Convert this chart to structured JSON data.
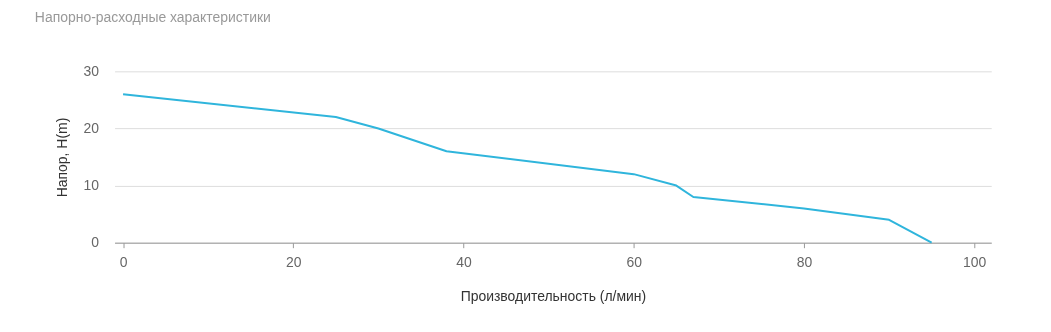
{
  "chart_data": {
    "type": "line",
    "title": "Напорно-расходные характеристики",
    "xlabel": "Производительность (л/мин)",
    "ylabel": "Напор, H(m)",
    "x": [
      0,
      25,
      30,
      38,
      60,
      65,
      67,
      80,
      90,
      95
    ],
    "series": [
      {
        "color": "#2fb5dc",
        "values": [
          26,
          22,
          20,
          16,
          12,
          10,
          8,
          6,
          4,
          0
        ]
      }
    ],
    "xlim": [
      -1,
      102
    ],
    "xticks": [
      0,
      20,
      40,
      60,
      80,
      100
    ],
    "ylim": [
      0,
      30
    ],
    "yticks": [
      0,
      10,
      20,
      30
    ],
    "grid": "y",
    "marker": "none",
    "line_style": "solid"
  }
}
